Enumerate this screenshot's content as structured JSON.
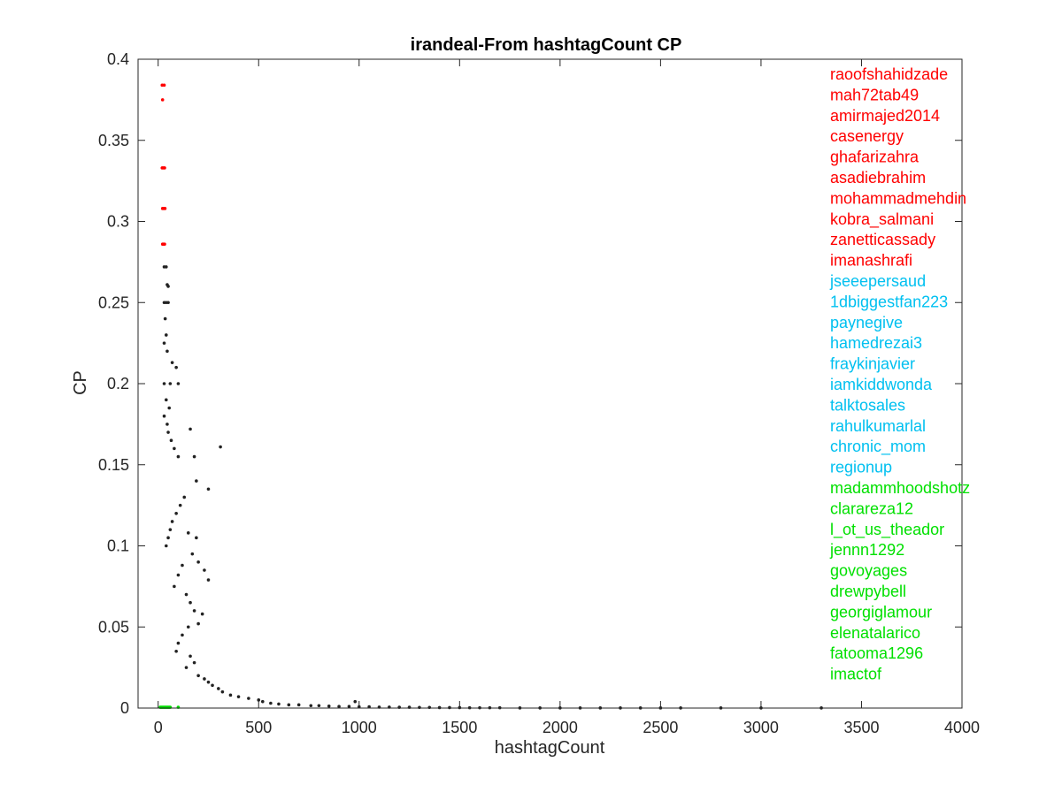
{
  "colors": {
    "background": "#ffffff",
    "axis": "#262626",
    "points_default": "#222222",
    "points_top": "#ff0000",
    "points_mid": "#00c0f0",
    "points_bottom": "#00e000"
  },
  "chart_data": {
    "type": "scatter",
    "title": "irandeal-From hashtagCount CP",
    "xlabel": "hashtagCount",
    "ylabel": "CP",
    "xlim": [
      -100,
      4000
    ],
    "ylim": [
      0,
      0.4
    ],
    "xticks": [
      "0",
      "500",
      "1000",
      "1500",
      "2000",
      "2500",
      "3000",
      "3500",
      "4000"
    ],
    "yticks": [
      "0",
      "0.05",
      "0.1",
      "0.15",
      "0.2",
      "0.25",
      "0.3",
      "0.35",
      "0.4"
    ],
    "grid": false,
    "legend": "none",
    "annotation_placement": "right",
    "annotations": [
      {
        "text": "raoofshahidzade",
        "group": "top"
      },
      {
        "text": "mah72tab49",
        "group": "top"
      },
      {
        "text": "amirmajed2014",
        "group": "top"
      },
      {
        "text": "casenergy",
        "group": "top"
      },
      {
        "text": "ghafarizahra",
        "group": "top"
      },
      {
        "text": "asadiebrahim",
        "group": "top"
      },
      {
        "text": "mohammadmehdin",
        "group": "top"
      },
      {
        "text": "kobra_salmani",
        "group": "top"
      },
      {
        "text": "zanetticassady",
        "group": "top"
      },
      {
        "text": "imanashrafi",
        "group": "top"
      },
      {
        "text": "jseeepersaud",
        "group": "mid"
      },
      {
        "text": "1dbiggestfan223",
        "group": "mid"
      },
      {
        "text": "paynegive",
        "group": "mid"
      },
      {
        "text": "hamedrezai3",
        "group": "mid"
      },
      {
        "text": "fraykinjavier",
        "group": "mid"
      },
      {
        "text": "iamkiddwonda",
        "group": "mid"
      },
      {
        "text": "talktosales",
        "group": "mid"
      },
      {
        "text": "rahulkumarlal",
        "group": "mid"
      },
      {
        "text": "chronic_mom",
        "group": "mid"
      },
      {
        "text": "regionup",
        "group": "mid"
      },
      {
        "text": "madammhoodshotz",
        "group": "bottom"
      },
      {
        "text": "clarareza12",
        "group": "bottom"
      },
      {
        "text": "l_ot_us_theador",
        "group": "bottom"
      },
      {
        "text": "jennn1292",
        "group": "bottom"
      },
      {
        "text": "govoyages",
        "group": "bottom"
      },
      {
        "text": "drewpybell",
        "group": "bottom"
      },
      {
        "text": "georgiglamour",
        "group": "bottom"
      },
      {
        "text": "elenatalarico",
        "group": "bottom"
      },
      {
        "text": "fatooma1296",
        "group": "bottom"
      },
      {
        "text": "imactof",
        "group": "bottom"
      }
    ],
    "series": [
      {
        "group": "top",
        "points": [
          [
            20,
            0.384
          ],
          [
            30,
            0.384
          ],
          [
            22,
            0.375
          ],
          [
            20,
            0.333
          ],
          [
            26,
            0.333
          ],
          [
            32,
            0.333
          ],
          [
            22,
            0.308
          ],
          [
            28,
            0.308
          ],
          [
            34,
            0.308
          ],
          [
            22,
            0.286
          ],
          [
            26,
            0.286
          ],
          [
            32,
            0.286
          ]
        ]
      },
      {
        "group": "mid",
        "points": []
      },
      {
        "group": "bottom",
        "points": [
          [
            10,
            0.0005
          ],
          [
            15,
            0.0005
          ],
          [
            20,
            0.0005
          ],
          [
            25,
            0.0005
          ],
          [
            30,
            0.0005
          ],
          [
            35,
            0.0005
          ],
          [
            40,
            0.0005
          ],
          [
            45,
            0.0005
          ],
          [
            50,
            0.0005
          ],
          [
            55,
            0.0005
          ],
          [
            60,
            0.0005
          ],
          [
            100,
            0.0005
          ]
        ]
      },
      {
        "group": "default",
        "points": [
          [
            30,
            0.272
          ],
          [
            40,
            0.272
          ],
          [
            45,
            0.261
          ],
          [
            50,
            0.26
          ],
          [
            30,
            0.25
          ],
          [
            40,
            0.25
          ],
          [
            50,
            0.25
          ],
          [
            35,
            0.24
          ],
          [
            40,
            0.23
          ],
          [
            30,
            0.225
          ],
          [
            45,
            0.22
          ],
          [
            70,
            0.213
          ],
          [
            90,
            0.21
          ],
          [
            100,
            0.2
          ],
          [
            30,
            0.2
          ],
          [
            60,
            0.2
          ],
          [
            40,
            0.19
          ],
          [
            55,
            0.185
          ],
          [
            30,
            0.18
          ],
          [
            45,
            0.175
          ],
          [
            50,
            0.17
          ],
          [
            65,
            0.165
          ],
          [
            80,
            0.16
          ],
          [
            100,
            0.155
          ],
          [
            160,
            0.172
          ],
          [
            180,
            0.155
          ],
          [
            310,
            0.161
          ],
          [
            250,
            0.135
          ],
          [
            190,
            0.14
          ],
          [
            130,
            0.13
          ],
          [
            110,
            0.125
          ],
          [
            90,
            0.12
          ],
          [
            70,
            0.115
          ],
          [
            60,
            0.11
          ],
          [
            50,
            0.105
          ],
          [
            40,
            0.1
          ],
          [
            150,
            0.108
          ],
          [
            190,
            0.105
          ],
          [
            170,
            0.095
          ],
          [
            200,
            0.09
          ],
          [
            230,
            0.085
          ],
          [
            250,
            0.079
          ],
          [
            120,
            0.088
          ],
          [
            100,
            0.082
          ],
          [
            80,
            0.075
          ],
          [
            140,
            0.07
          ],
          [
            160,
            0.065
          ],
          [
            180,
            0.06
          ],
          [
            220,
            0.058
          ],
          [
            200,
            0.052
          ],
          [
            150,
            0.05
          ],
          [
            120,
            0.045
          ],
          [
            100,
            0.04
          ],
          [
            90,
            0.035
          ],
          [
            160,
            0.032
          ],
          [
            180,
            0.028
          ],
          [
            140,
            0.025
          ],
          [
            200,
            0.02
          ],
          [
            230,
            0.018
          ],
          [
            250,
            0.016
          ],
          [
            270,
            0.014
          ],
          [
            300,
            0.012
          ],
          [
            320,
            0.01
          ],
          [
            360,
            0.008
          ],
          [
            400,
            0.007
          ],
          [
            450,
            0.006
          ],
          [
            500,
            0.005
          ],
          [
            520,
            0.004
          ],
          [
            560,
            0.003
          ],
          [
            600,
            0.0025
          ],
          [
            650,
            0.002
          ],
          [
            700,
            0.002
          ],
          [
            760,
            0.0015
          ],
          [
            800,
            0.0015
          ],
          [
            850,
            0.0012
          ],
          [
            900,
            0.001
          ],
          [
            950,
            0.001
          ],
          [
            980,
            0.004
          ],
          [
            1000,
            0.0008
          ],
          [
            1050,
            0.0008
          ],
          [
            1100,
            0.0006
          ],
          [
            1150,
            0.0006
          ],
          [
            1200,
            0.0005
          ],
          [
            1250,
            0.0005
          ],
          [
            1300,
            0.0004
          ],
          [
            1350,
            0.0004
          ],
          [
            1400,
            0.0003
          ],
          [
            1450,
            0.0003
          ],
          [
            1500,
            0.0003
          ],
          [
            1550,
            0.0002
          ],
          [
            1600,
            0.0002
          ],
          [
            1650,
            0.0002
          ],
          [
            1700,
            0.0002
          ],
          [
            1800,
            0.0001
          ],
          [
            1900,
            0.0001
          ],
          [
            2000,
            0.0001
          ],
          [
            2100,
            0.0001
          ],
          [
            2200,
            0.0001
          ],
          [
            2300,
            0.0001
          ],
          [
            2400,
            0.0001
          ],
          [
            2500,
            0.0001
          ],
          [
            2600,
            0.0001
          ],
          [
            2800,
            0.0001
          ],
          [
            3000,
            0.0001
          ],
          [
            3300,
            0.0001
          ]
        ]
      }
    ]
  }
}
